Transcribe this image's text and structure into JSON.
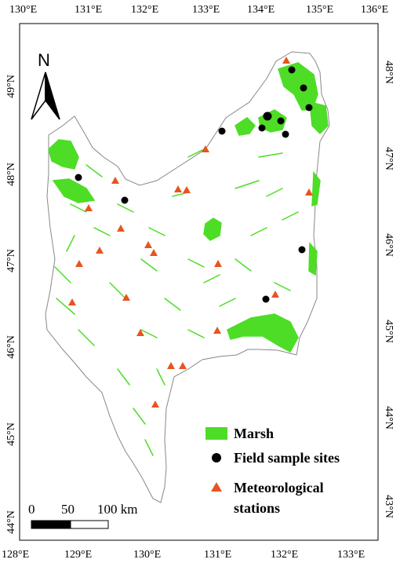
{
  "map": {
    "top_lon_labels": [
      "130°E",
      "131°E",
      "132°E",
      "133°E",
      "134°E",
      "135°E",
      "136°E"
    ],
    "bottom_lon_labels": [
      "128°E",
      "129°E",
      "130°E",
      "131°E",
      "132°E",
      "133°E"
    ],
    "left_lat_labels": [
      "49°N",
      "48°N",
      "47°N",
      "46°N",
      "45°N",
      "44°N"
    ],
    "right_lat_labels": [
      "48°N",
      "47°N",
      "46°N",
      "45°N",
      "44°N",
      "43°N"
    ],
    "north_arrow": {
      "label": "N",
      "icon": "north-arrow-icon"
    },
    "legend": {
      "marsh": "Marsh",
      "field_sites": "Field sample sites",
      "meteo_line1": "Meteorological",
      "meteo_line2": "stations"
    },
    "scale_bar": {
      "label_0": "0",
      "label_50": "50",
      "label_100": "100 km"
    },
    "colors": {
      "marsh": "#4ddd26",
      "field_site": "#000000",
      "station": "#e8541e",
      "boundary": "#888888"
    }
  }
}
